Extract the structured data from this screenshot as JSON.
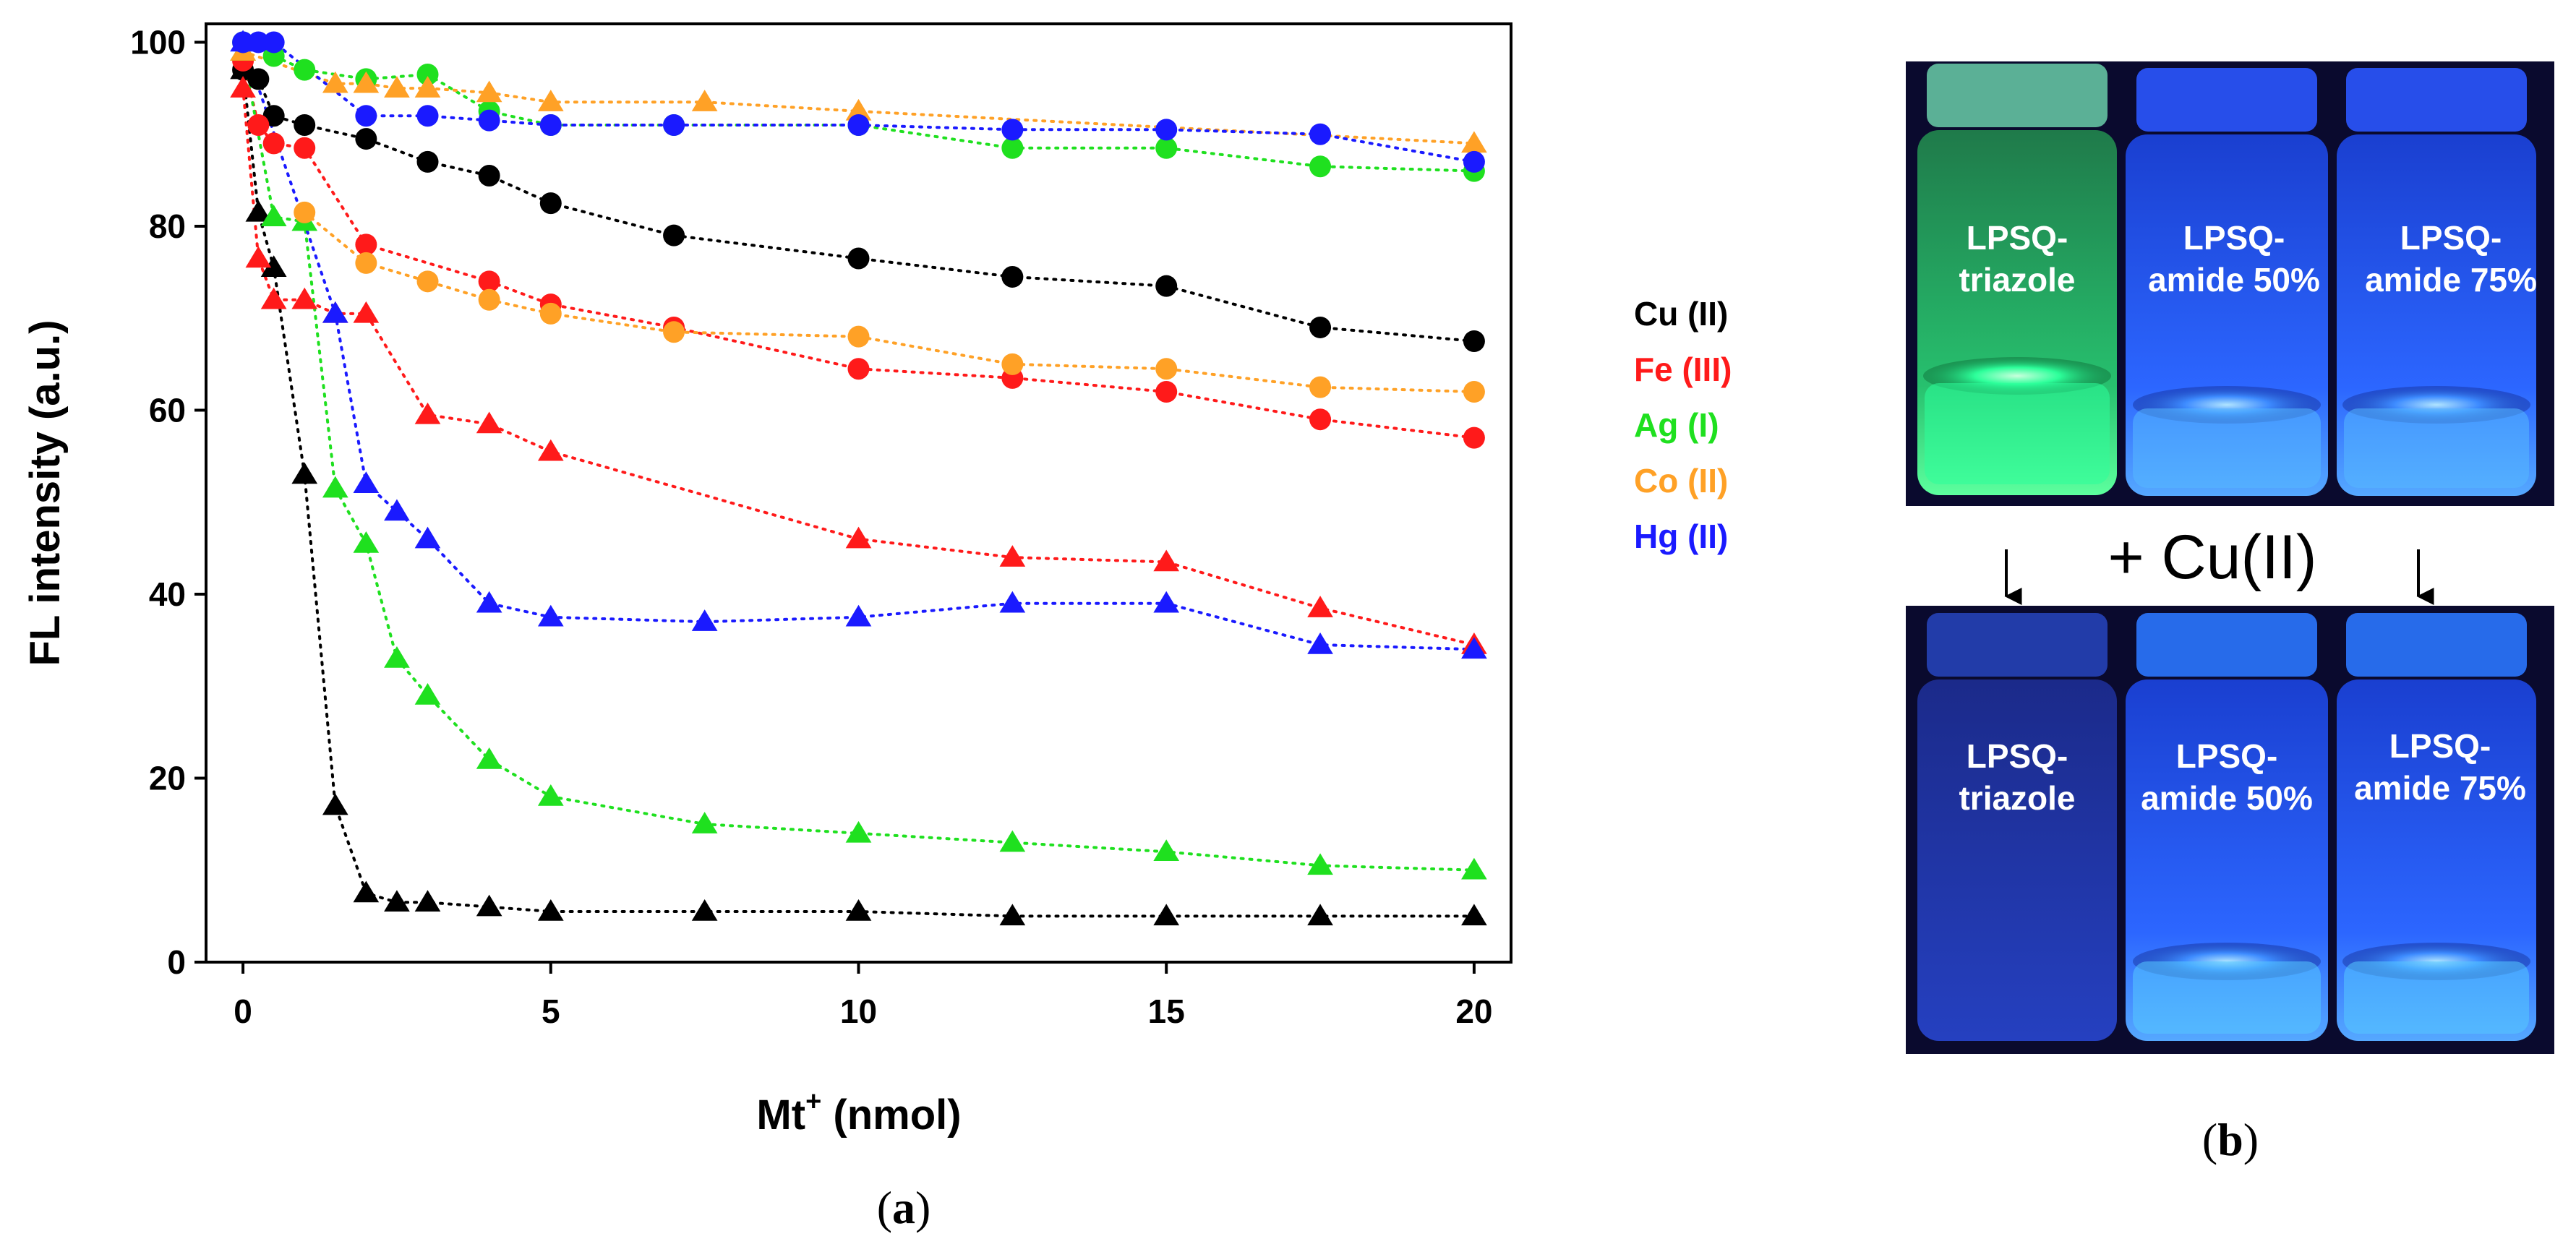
{
  "chart_data": {
    "type": "scatter",
    "title": "",
    "xlabel": "Mt",
    "xlabel_sup": "+",
    "xlabel_unit": " (nmol)",
    "ylabel": "FL intensity (a.u.)",
    "xlim": [
      -0.6,
      20.6
    ],
    "ylim": [
      0,
      102
    ],
    "xticks": [
      0,
      5,
      10,
      15,
      20
    ],
    "yticks": [
      0,
      20,
      40,
      60,
      80,
      100
    ],
    "legend_position": "right",
    "series": [
      {
        "name": "Cu (II)",
        "marker": "circle",
        "color": "#000000",
        "x": [
          0,
          0.25,
          0.5,
          1,
          2,
          3,
          4,
          5,
          7,
          10,
          12.5,
          15,
          17.5,
          20
        ],
        "y": [
          97,
          96,
          92,
          91,
          89.5,
          87,
          85.5,
          82.5,
          79,
          76.5,
          74.5,
          73.5,
          69,
          67.5
        ]
      },
      {
        "name": "Cu (II)",
        "marker": "triangle",
        "color": "#000000",
        "x": [
          0,
          0.25,
          0.5,
          1,
          1.5,
          2,
          2.5,
          3,
          4,
          5,
          7.5,
          10,
          12.5,
          15,
          17.5,
          20
        ],
        "y": [
          97,
          81.5,
          75.5,
          53,
          17,
          7.5,
          6.5,
          6.5,
          6,
          5.5,
          5.5,
          5.5,
          5,
          5,
          5,
          5
        ]
      },
      {
        "name": "Fe (III)",
        "marker": "circle",
        "color": "#ff1a1a",
        "x": [
          0,
          0.25,
          0.5,
          1,
          2,
          4,
          5,
          7,
          10,
          12.5,
          15,
          17.5,
          20
        ],
        "y": [
          98,
          91,
          89,
          88.5,
          78,
          74,
          71.5,
          69,
          64.5,
          63.5,
          62,
          59,
          57
        ]
      },
      {
        "name": "Fe (III)",
        "marker": "triangle",
        "color": "#ff1a1a",
        "x": [
          0,
          0.25,
          0.5,
          1,
          1.5,
          2,
          3,
          4,
          5,
          10,
          12.5,
          15,
          17.5,
          20
        ],
        "y": [
          95,
          76.5,
          72,
          72,
          70.5,
          70.5,
          59.5,
          58.5,
          55.5,
          46,
          44,
          43.5,
          38.5,
          34.5
        ]
      },
      {
        "name": "Ag (I)",
        "marker": "circle",
        "color": "#1fe01f",
        "x": [
          0,
          0.5,
          1,
          2,
          3,
          4,
          5,
          7,
          10,
          12.5,
          15,
          17.5,
          20
        ],
        "y": [
          100,
          98.5,
          97,
          96,
          96.5,
          92.5,
          91,
          91,
          91,
          88.5,
          88.5,
          86.5,
          86
        ]
      },
      {
        "name": "Ag (I)",
        "marker": "triangle",
        "color": "#1fe01f",
        "x": [
          0,
          0.5,
          1,
          1.5,
          2,
          2.5,
          3,
          4,
          5,
          7.5,
          10,
          12.5,
          15,
          17.5,
          20
        ],
        "y": [
          99,
          81,
          80.5,
          51.5,
          45.5,
          33,
          29,
          22,
          18,
          15,
          14,
          13,
          12,
          10.5,
          10
        ]
      },
      {
        "name": "Co (II)",
        "marker": "circle",
        "color": "#ffa126",
        "x": [
          1,
          2,
          3,
          4,
          5,
          7,
          10,
          12.5,
          15,
          17.5,
          20
        ],
        "y": [
          81.5,
          76,
          74,
          72,
          70.5,
          68.5,
          68,
          65,
          64.5,
          62.5,
          62
        ]
      },
      {
        "name": "Co (II)",
        "marker": "triangle",
        "color": "#ffa126",
        "x": [
          0,
          1.5,
          2,
          2.5,
          3,
          4,
          5,
          7.5,
          10,
          20
        ],
        "y": [
          99,
          95.5,
          95.5,
          95,
          95,
          94.5,
          93.5,
          93.5,
          92.5,
          89
        ]
      },
      {
        "name": "Hg (II)",
        "marker": "circle",
        "color": "#1a1aff",
        "x": [
          0,
          0.25,
          0.5,
          2,
          3,
          4,
          5,
          7,
          10,
          12.5,
          15,
          17.5,
          20
        ],
        "y": [
          100,
          100,
          100,
          92,
          92,
          91.5,
          91,
          91,
          91,
          90.5,
          90.5,
          90,
          87
        ]
      },
      {
        "name": "Hg (II)",
        "marker": "triangle",
        "color": "#1a1aff",
        "x": [
          0,
          1.5,
          2,
          2.5,
          3,
          4,
          5,
          7.5,
          10,
          12.5,
          15,
          17.5,
          20
        ],
        "y": [
          100,
          70.5,
          52,
          49,
          46,
          39,
          37.5,
          37,
          37.5,
          39,
          39,
          34.5,
          34
        ]
      }
    ],
    "legend": [
      {
        "label": "Cu (II)",
        "color": "#000000"
      },
      {
        "label": "Fe (III)",
        "color": "#ff1a1a"
      },
      {
        "label": "Ag (I)",
        "color": "#1fe01f"
      },
      {
        "label": "Co (II)",
        "color": "#ffa126"
      },
      {
        "label": "Hg (II)",
        "color": "#1a1aff"
      }
    ]
  },
  "captions": {
    "panel_a": {
      "open": "(",
      "letter": "a",
      "close": ")"
    },
    "panel_b": {
      "open": "(",
      "letter": "b",
      "close": ")"
    }
  },
  "photo": {
    "top_vials": [
      {
        "line1": "LPSQ-",
        "line2": "triazole"
      },
      {
        "line1": "LPSQ-",
        "line2": "amide 50%"
      },
      {
        "line1": "LPSQ-",
        "line2": "amide 75%"
      }
    ],
    "bottom_vials": [
      {
        "line1": "LPSQ-",
        "line2": "triazole"
      },
      {
        "line1": "LPSQ-",
        "line2": "amide 50%"
      },
      {
        "line1": "LPSQ-",
        "line2": "amide 75%"
      }
    ],
    "reagent_label": "+ Cu(II)",
    "colors": {
      "background": "#0a0a2e",
      "green_glow": "#2cff9a",
      "blue_glow": "#3d8bff",
      "dim_blue": "#2a4fd8"
    }
  }
}
